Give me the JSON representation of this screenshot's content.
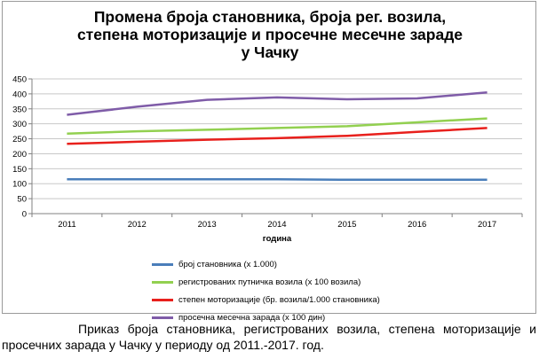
{
  "chart_data": {
    "type": "line",
    "title_lines": [
      "Промена броја становника, броја рег. возила,",
      "степена моторизације и просечне месечне зараде",
      "у Чачку"
    ],
    "xlabel": "година",
    "ylabel": "",
    "categories": [
      "2011",
      "2012",
      "2013",
      "2014",
      "2015",
      "2016",
      "2017"
    ],
    "ylim": [
      0,
      450
    ],
    "yticks": [
      0,
      50,
      100,
      150,
      200,
      250,
      300,
      350,
      400,
      450
    ],
    "grid": true,
    "legend_position": "bottom",
    "series": [
      {
        "name": "број становника (x 1.000)",
        "color": "#4a7eba",
        "values": [
          115,
          115,
          115,
          115,
          113,
          113,
          113
        ]
      },
      {
        "name": "регистрованих путничка возила (x 100 возила)",
        "color": "#92d050",
        "values": [
          267,
          275,
          280,
          286,
          292,
          305,
          318
        ]
      },
      {
        "name": "степен моторизације (бр. возила/1.000 становника)",
        "color": "#e8201c",
        "values": [
          233,
          240,
          247,
          252,
          260,
          273,
          286
        ]
      },
      {
        "name": "просечна месечна зарада (x 100 дин)",
        "color": "#7f5ca8",
        "values": [
          330,
          357,
          380,
          388,
          382,
          385,
          405
        ]
      }
    ]
  },
  "caption": {
    "text": "Приказ броја становника, регистрованих возила, степена моторизације и просечних зарада у Чачку у периоду од 2011.-2017. год."
  }
}
